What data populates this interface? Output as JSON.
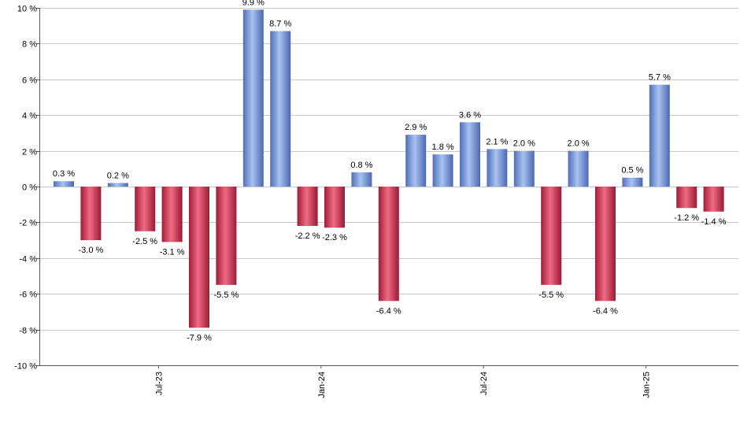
{
  "chart_data": {
    "type": "bar",
    "ylim": [
      -10,
      10
    ],
    "y_ticks": [
      "10 %",
      "8 %",
      "6 %",
      "4 %",
      "2 %",
      "0 %",
      "-2 %",
      "-4 %",
      "-6 %",
      "-8 %",
      "-10 %"
    ],
    "y_tick_values": [
      10,
      8,
      6,
      4,
      2,
      0,
      -2,
      -4,
      -6,
      -8,
      -10
    ],
    "x_tick_labels": [
      "Jul-23",
      "Jan-24",
      "Jul-24",
      "Jan-25"
    ],
    "x_tick_positions": [
      3.5,
      9.5,
      15.5,
      21.5
    ],
    "values": [
      0.3,
      -3.0,
      0.2,
      -2.5,
      -3.1,
      -7.9,
      -5.5,
      9.9,
      8.7,
      -2.2,
      -2.3,
      0.8,
      -6.4,
      2.9,
      1.8,
      3.6,
      2.1,
      2.0,
      -5.5,
      2.0,
      -6.4,
      0.5,
      5.7,
      -1.2,
      -1.4
    ],
    "labels": [
      "0.3 %",
      "-3.0 %",
      "0.2 %",
      "-2.5 %",
      "-3.1 %",
      "-7.9 %",
      "-5.5 %",
      "9.9 %",
      "8.7 %",
      "-2.2 %",
      "-2.3 %",
      "0.8 %",
      "-6.4 %",
      "2.9 %",
      "1.8 %",
      "3.6 %",
      "2.1 %",
      "2.0 %",
      "-5.5 %",
      "2.0 %",
      "-6.4 %",
      "0.5 %",
      "5.7 %",
      "-1.2 %",
      "-1.4 %"
    ],
    "grid": true,
    "colors": {
      "positive": "#6e8fd6",
      "negative": "#c8344f"
    }
  }
}
